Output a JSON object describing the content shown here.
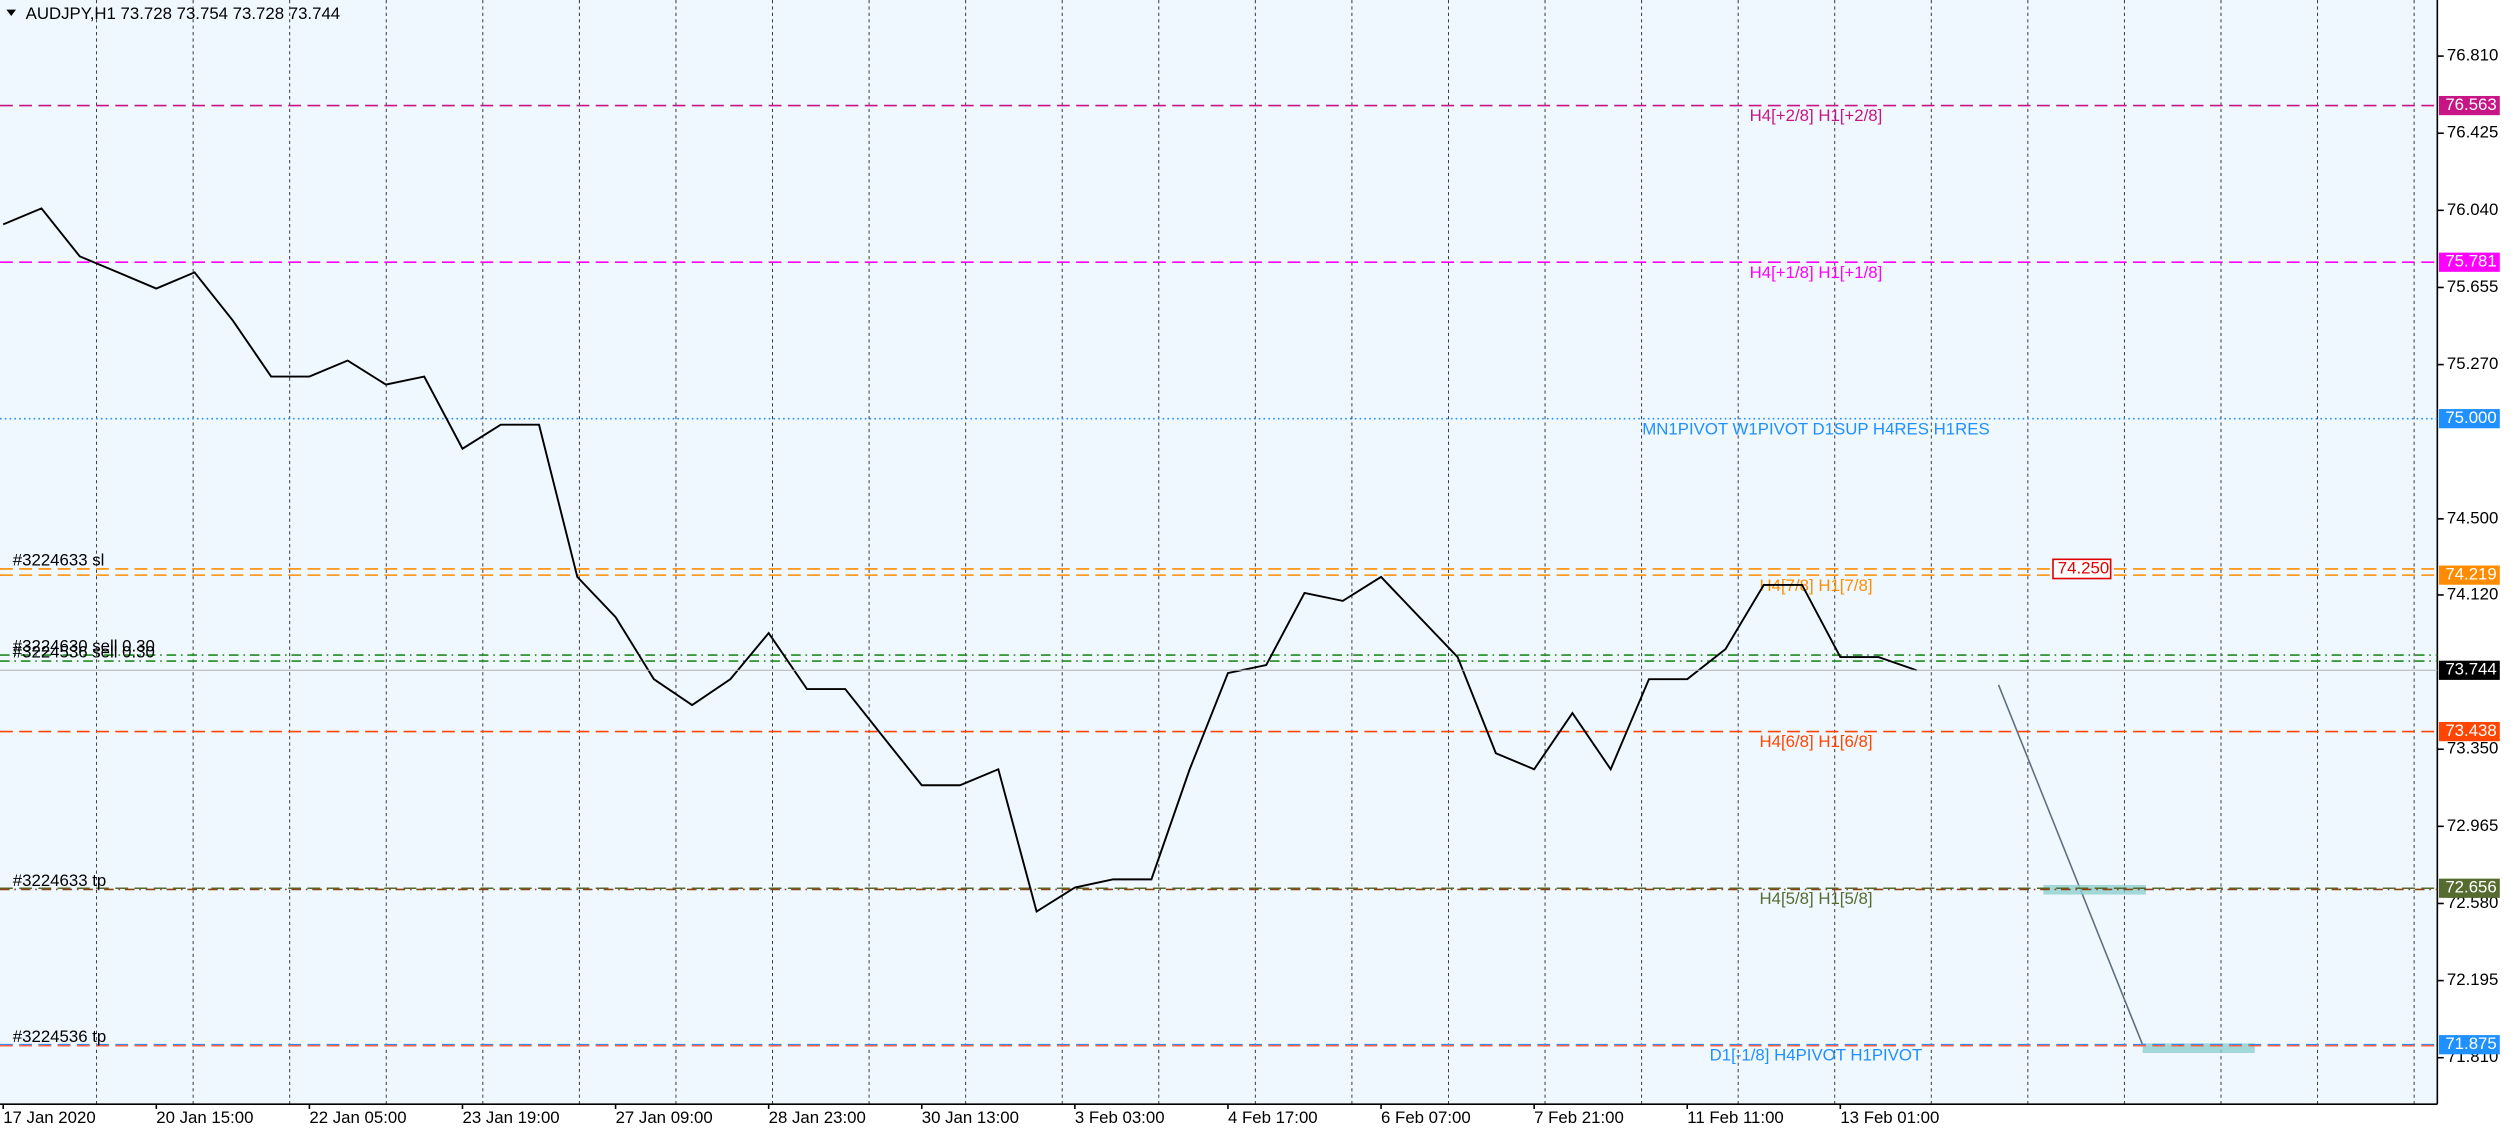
{
  "chart_data": {
    "type": "line",
    "title": "AUDJPY,H1  73.728 73.754 73.728 73.744",
    "color": "#000000",
    "categories": [
      "17 Jan 2020",
      null,
      null,
      null,
      "20 Jan 15:00",
      null,
      null,
      null,
      "22 Jan 05:00",
      null,
      null,
      null,
      "23 Jan 19:00",
      null,
      null,
      null,
      "27 Jan 09:00",
      null,
      null,
      null,
      "28 Jan 23:00",
      null,
      null,
      null,
      "30 Jan 13:00",
      null,
      null,
      null,
      "3 Feb 03:00",
      null,
      null,
      null,
      "4 Feb 17:00",
      null,
      null,
      null,
      "6 Feb 07:00",
      null,
      null,
      null,
      "7 Feb 21:00",
      null,
      null,
      null,
      "11 Feb 11:00",
      null,
      null,
      null,
      "13 Feb 01:00",
      null,
      null
    ],
    "values": [
      75.97,
      76.05,
      75.81,
      75.73,
      75.65,
      75.73,
      75.49,
      75.21,
      75.21,
      75.29,
      75.17,
      75.21,
      74.85,
      74.97,
      74.97,
      74.21,
      74.01,
      73.7,
      73.57,
      73.7,
      73.93,
      73.65,
      73.65,
      73.41,
      73.17,
      73.17,
      73.25,
      72.54,
      72.66,
      72.7,
      72.7,
      73.25,
      73.73,
      73.77,
      74.13,
      74.09,
      74.21,
      74.01,
      73.81,
      73.33,
      73.25,
      73.53,
      73.25,
      73.7,
      73.7,
      73.85,
      74.17,
      74.17,
      73.81,
      73.81,
      73.744
    ],
    "ylim": [
      71.578,
      77.09
    ],
    "yticks": [
      {
        "value": 76.81,
        "label": "76.810"
      },
      {
        "value": 76.425,
        "label": "76.425"
      },
      {
        "value": 76.04,
        "label": "76.040"
      },
      {
        "value": 75.655,
        "label": "75.655"
      },
      {
        "value": 75.27,
        "label": "75.270"
      },
      {
        "value": 74.5,
        "label": "74.500"
      },
      {
        "value": 74.12,
        "label": "74.120"
      },
      {
        "value": 73.35,
        "label": "73.350"
      },
      {
        "value": 72.965,
        "label": "72.965"
      },
      {
        "value": 72.58,
        "label": "72.580"
      },
      {
        "value": 72.195,
        "label": "72.195"
      },
      {
        "value": 71.81,
        "label": "71.810"
      }
    ],
    "levels": [
      {
        "text": "H4[+2/8] H1[+2/8]",
        "value": 76.563,
        "label": "76.563",
        "color": "#c71585",
        "style": "dash"
      },
      {
        "text": "H4[+1/8] H1[+1/8]",
        "value": 75.781,
        "label": "75.781",
        "color": "#ff00ff",
        "style": "dash"
      },
      {
        "text": "MN1PIVOT W1PIVOT D1SUP H4RES H1RES",
        "value": 75.0,
        "label": "75.000",
        "color": "#1e90ff",
        "style": "dot"
      },
      {
        "text": "H4[7/8] H1[7/8]",
        "value": 74.219,
        "label": "74.219",
        "color": "#ff8c00",
        "style": "dash"
      },
      {
        "text": "H4[6/8] H1[6/8]",
        "value": 73.438,
        "label": "73.438",
        "color": "#ff4500",
        "style": "dash"
      },
      {
        "text": "H4[5/8] H1[5/8]",
        "value": 72.656,
        "label": "72.656",
        "color": "#556b2f",
        "style": "dash"
      },
      {
        "text": "D1[-1/8] H4PIVOT H1PIVOT",
        "value": 71.875,
        "label": "71.875",
        "color": "#1e90ff",
        "style": "dash"
      }
    ],
    "orders": [
      {
        "text": "#3224633 sl",
        "value": 74.25,
        "color": "#ff8c00",
        "style": "dash",
        "box_label": "74.250"
      },
      {
        "text": "#3224630 sell 0.30",
        "value": 73.82,
        "color": "#228b22",
        "style": "dashdot"
      },
      {
        "text": "#3224536 sell 0.30",
        "value": 73.79,
        "color": "#228b22",
        "style": "dashdot"
      },
      {
        "text": "#3224633 tp",
        "value": 72.65,
        "color": "#8b4513",
        "style": "dashdot"
      },
      {
        "text": "#3224536 tp",
        "value": 71.87,
        "color": "#ff6347",
        "style": "dash"
      }
    ],
    "last": {
      "value": 73.744,
      "label": "73.744"
    }
  }
}
